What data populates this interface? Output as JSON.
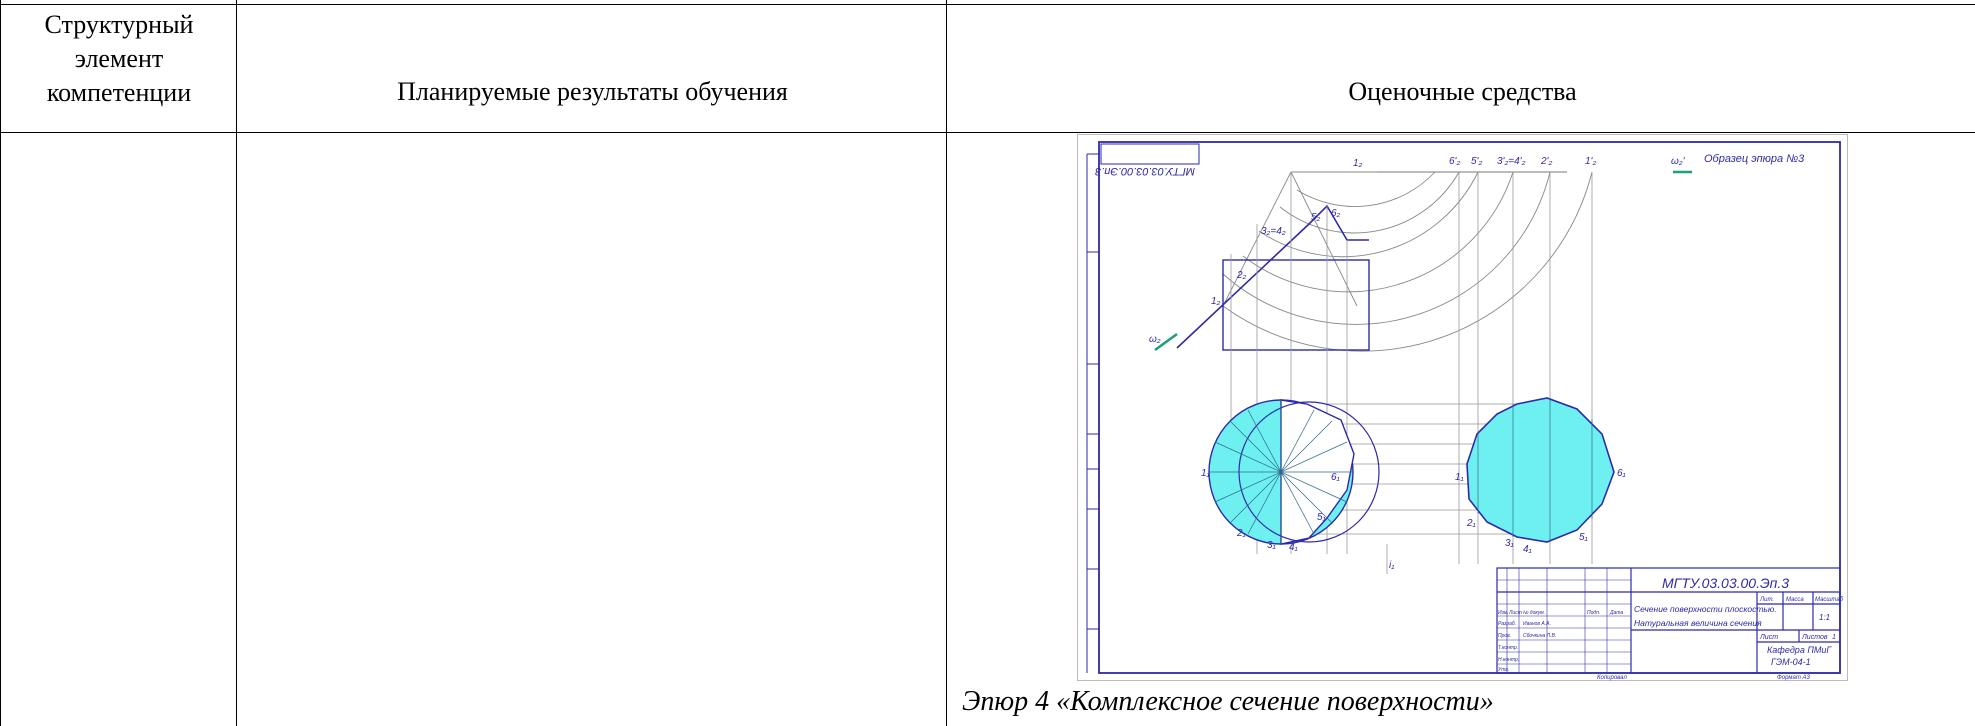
{
  "table": {
    "headers": {
      "col1": "Структурный элемент компетенции",
      "col2": "Планируемые результаты обучения",
      "col3": "Оценочные средства"
    }
  },
  "drawing": {
    "stamp_top": "МГТУ.03.03.00.Эп.3",
    "sample_label": "Образец эпюра №3",
    "title_block": {
      "designation": "МГТУ.03.03.00.Эп.3",
      "title_line1": "Сечение поверхности плоскостью.",
      "title_line2": "Натуральная величина сечения",
      "mass_header": "Масса",
      "scale_header": "Масштаб",
      "lit_header": "Лит.",
      "scale_value": "1:1",
      "sheet_label": "Лист",
      "sheets_label": "Листов",
      "sheets_value": "1",
      "department": "Кафедра ПМиГ",
      "group": "ГЭМ-04-1",
      "copied": "Копировал",
      "format": "Формат А3",
      "roles": [
        "Изм.",
        "Лист",
        "№ докум.",
        "Подп.",
        "Дата",
        "Разраб.",
        "Пров.",
        "Т.контр.",
        "Н.контр.",
        "Утв."
      ],
      "names": [
        "Иванов А.А.",
        "Сбочкина Л.В."
      ]
    },
    "point_labels": {
      "top_row": [
        "1₂",
        "6'₂",
        "5'₂",
        "3'₂=4'₂",
        "2'₂",
        "1'₂",
        "ω₂'"
      ],
      "front": [
        "3₂=4₂",
        "5₂",
        "6₂",
        "2₂",
        "1₂",
        "ω₂"
      ],
      "plan_left": [
        "1₁",
        "2₁",
        "3₁",
        "4₁",
        "5₁",
        "6₁"
      ],
      "plan_right": [
        "1₁",
        "2₁",
        "3₁",
        "4₁",
        "5₁",
        "6₁"
      ],
      "axis": "i₁"
    }
  },
  "caption": "Эпюр 4 «Комплексное сечение поверхности»"
}
